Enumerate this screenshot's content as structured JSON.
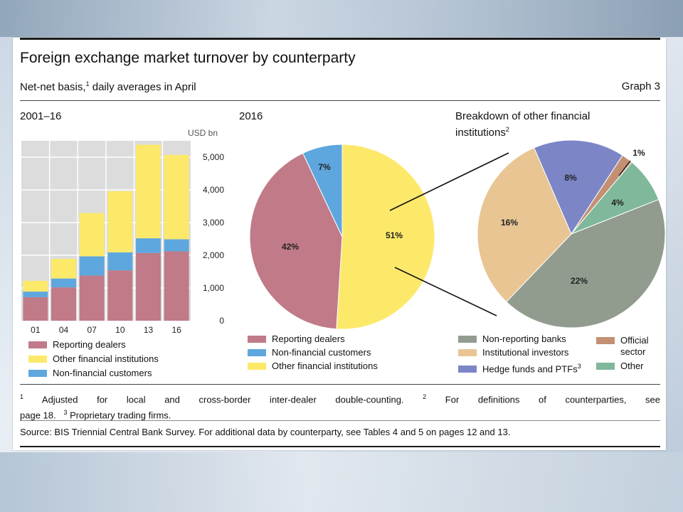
{
  "title": "Foreign exchange market turnover by counterparty",
  "subtitle": "Net-net basis,",
  "subtitle_sup": "1",
  "subtitle_rest": " daily averages in April",
  "graph_no": "Graph 3",
  "panels": {
    "left_title": "2001–16",
    "middle_title": "2016",
    "right_title_line1": "Breakdown of other financial",
    "right_title_line2": "institutions",
    "right_title_sup": "2"
  },
  "colors": {
    "reporting_dealers": "#c07a88",
    "other_financial": "#fce96a",
    "non_financial": "#5ea7de",
    "non_reporting_banks": "#919c8f",
    "institutional_investors": "#e8c593",
    "hedge_funds": "#7c86c7",
    "official_sector": "#c39073",
    "other": "#80b89b"
  },
  "chart_data": [
    {
      "type": "bar",
      "stacked": true,
      "title": "2001–16",
      "unit": "USD bn",
      "categories": [
        "01",
        "04",
        "07",
        "10",
        "13",
        "16"
      ],
      "series": [
        {
          "name": "Reporting dealers",
          "values": [
            720,
            1020,
            1380,
            1540,
            2070,
            2120
          ]
        },
        {
          "name": "Non-financial customers",
          "values": [
            170,
            270,
            590,
            550,
            450,
            370
          ]
        },
        {
          "name": "Other financial institutions",
          "values": [
            330,
            600,
            1320,
            1870,
            2860,
            2580
          ]
        }
      ],
      "ylim": [
        0,
        5500
      ],
      "yticks": [
        "0",
        "1,000",
        "2,000",
        "3,000",
        "4,000",
        "5,000"
      ],
      "grid": true,
      "legend": "bottom"
    },
    {
      "type": "pie",
      "title": "2016",
      "slices": [
        {
          "name": "Other financial institutions",
          "value": 51,
          "label": "51%"
        },
        {
          "name": "Reporting dealers",
          "value": 42,
          "label": "42%"
        },
        {
          "name": "Non-financial customers",
          "value": 7,
          "label": "7%"
        }
      ],
      "legend": "bottom"
    },
    {
      "type": "pie",
      "title": "Breakdown of other financial institutions",
      "slices": [
        {
          "name": "Non-reporting banks",
          "value": 22,
          "label": "22%"
        },
        {
          "name": "Institutional investors",
          "value": 16,
          "label": "16%"
        },
        {
          "name": "Hedge funds and PTFs",
          "value": 8,
          "label": "8%"
        },
        {
          "name": "Official sector",
          "value": 1,
          "label": "1%"
        },
        {
          "name": "Other",
          "value": 4,
          "label": "4%"
        }
      ],
      "legend": "bottom"
    }
  ],
  "legends": {
    "bar": [
      "Reporting dealers",
      "Other financial institutions",
      "Non-financial customers"
    ],
    "pie1": [
      "Reporting dealers",
      "Non-financial customers",
      "Other financial institutions"
    ],
    "pie2_col1": [
      "Non-reporting banks",
      "Institutional investors",
      "Hedge funds and PTFs"
    ],
    "pie2_sup": "3",
    "pie2_col2_official_line1": "Official",
    "pie2_col2_official_line2": "sector",
    "pie2_col2_other": "Other"
  },
  "footnotes": {
    "fn1_sup": "1",
    "fn1": " Adjusted for local and cross-border inter-dealer double-counting. ",
    "fn2_sup": "2",
    "fn2": " For definitions of counterparties, see",
    "line2": "page 18.",
    "fn3_sup": "3",
    "fn3": " Proprietary trading firms."
  },
  "source": "Source: BIS Triennial Central Bank Survey. For additional data by counterparty, see Tables 4 and 5 on pages 12 and 13."
}
